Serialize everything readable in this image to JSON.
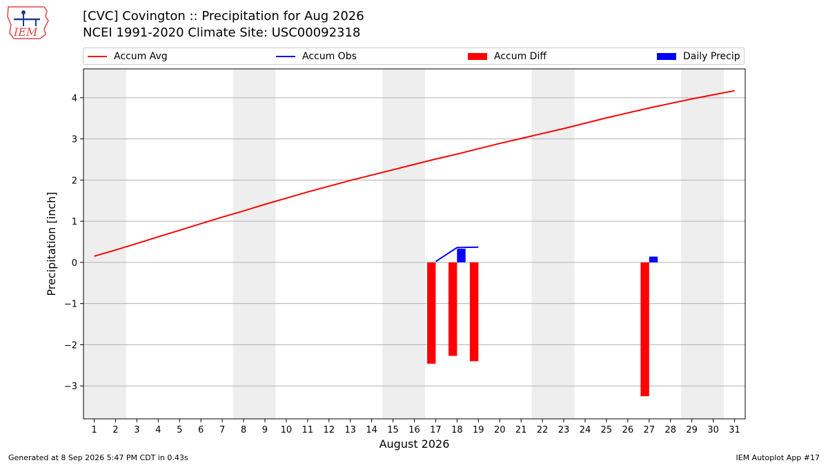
{
  "header": {
    "title_line1": "[CVC] Covington :: Precipitation for Aug 2026",
    "title_line2": "NCEI 1991-2020 Climate Site: USC00092318",
    "logo_text": "IEM"
  },
  "legend": {
    "items": [
      {
        "label": "Accum Avg",
        "kind": "line",
        "color": "#ff0000"
      },
      {
        "label": "Accum Obs",
        "kind": "line",
        "color": "#0000ff"
      },
      {
        "label": "Accum Diff",
        "kind": "bar",
        "color": "#ff0000"
      },
      {
        "label": "Daily Precip",
        "kind": "bar",
        "color": "#0000ff"
      }
    ]
  },
  "chart_data": {
    "type": "bar",
    "xlabel": "August 2026",
    "ylabel": "Precipitation [inch]",
    "xlim": [
      0.5,
      31.5
    ],
    "ylim": [
      -3.8,
      4.7
    ],
    "x_ticks": [
      1,
      2,
      3,
      4,
      5,
      6,
      7,
      8,
      9,
      10,
      11,
      12,
      13,
      14,
      15,
      16,
      17,
      18,
      19,
      20,
      21,
      22,
      23,
      24,
      25,
      26,
      27,
      28,
      29,
      30,
      31
    ],
    "y_ticks": [
      -3,
      -2,
      -1,
      0,
      1,
      2,
      3,
      4
    ],
    "y_tick_labels": [
      "−3",
      "−2",
      "−1",
      "0",
      "1",
      "2",
      "3",
      "4"
    ],
    "grid": "horizontal",
    "weekend_shading": [
      [
        0.5,
        2.5
      ],
      [
        7.5,
        9.5
      ],
      [
        14.5,
        16.5
      ],
      [
        21.5,
        23.5
      ],
      [
        28.5,
        30.5
      ]
    ],
    "series": [
      {
        "name": "Accum Avg",
        "kind": "line",
        "color": "#ff0000",
        "x": [
          1,
          2,
          3,
          4,
          5,
          6,
          7,
          8,
          9,
          10,
          11,
          12,
          13,
          14,
          15,
          16,
          17,
          18,
          19,
          20,
          21,
          22,
          23,
          24,
          25,
          26,
          27,
          28,
          29,
          30,
          31
        ],
        "y": [
          0.15,
          0.3,
          0.46,
          0.62,
          0.78,
          0.94,
          1.1,
          1.25,
          1.41,
          1.56,
          1.71,
          1.85,
          1.99,
          2.12,
          2.25,
          2.38,
          2.51,
          2.63,
          2.76,
          2.89,
          3.01,
          3.13,
          3.25,
          3.38,
          3.51,
          3.63,
          3.75,
          3.86,
          3.97,
          4.07,
          4.17
        ]
      },
      {
        "name": "Accum Obs",
        "kind": "line",
        "color": "#0000ff",
        "x": [
          17,
          18,
          19
        ],
        "y": [
          0.02,
          0.36,
          0.37
        ]
      },
      {
        "name": "Accum Diff",
        "kind": "bar",
        "color": "#ff0000",
        "x": [
          17,
          18,
          19,
          27
        ],
        "y": [
          -2.46,
          -2.27,
          -2.4,
          -3.25
        ]
      },
      {
        "name": "Daily Precip",
        "kind": "bar",
        "color": "#0000ff",
        "x": [
          18,
          27
        ],
        "y": [
          0.33,
          0.14
        ]
      }
    ]
  },
  "footer": {
    "left": "Generated at 8 Sep 2026 5:47 PM CDT in 0.43s",
    "right": "IEM Autoplot App #17"
  }
}
